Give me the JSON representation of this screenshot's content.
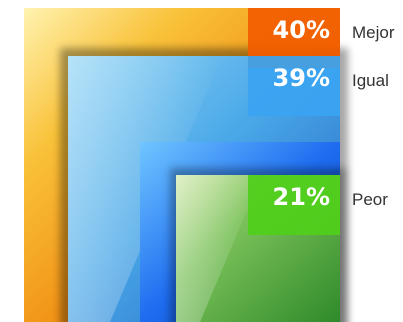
{
  "chart_data": {
    "type": "nested-square",
    "series": [
      {
        "name": "Mejor",
        "value": 40,
        "label": "40%",
        "color": "#f37a00"
      },
      {
        "name": "Igual",
        "value": 39,
        "label": "39%",
        "color": "#2f8fe0"
      },
      {
        "name": "Peor",
        "value": 21,
        "label": "21%",
        "color": "#3fa52a"
      }
    ],
    "title": "",
    "legend_position": "right"
  }
}
